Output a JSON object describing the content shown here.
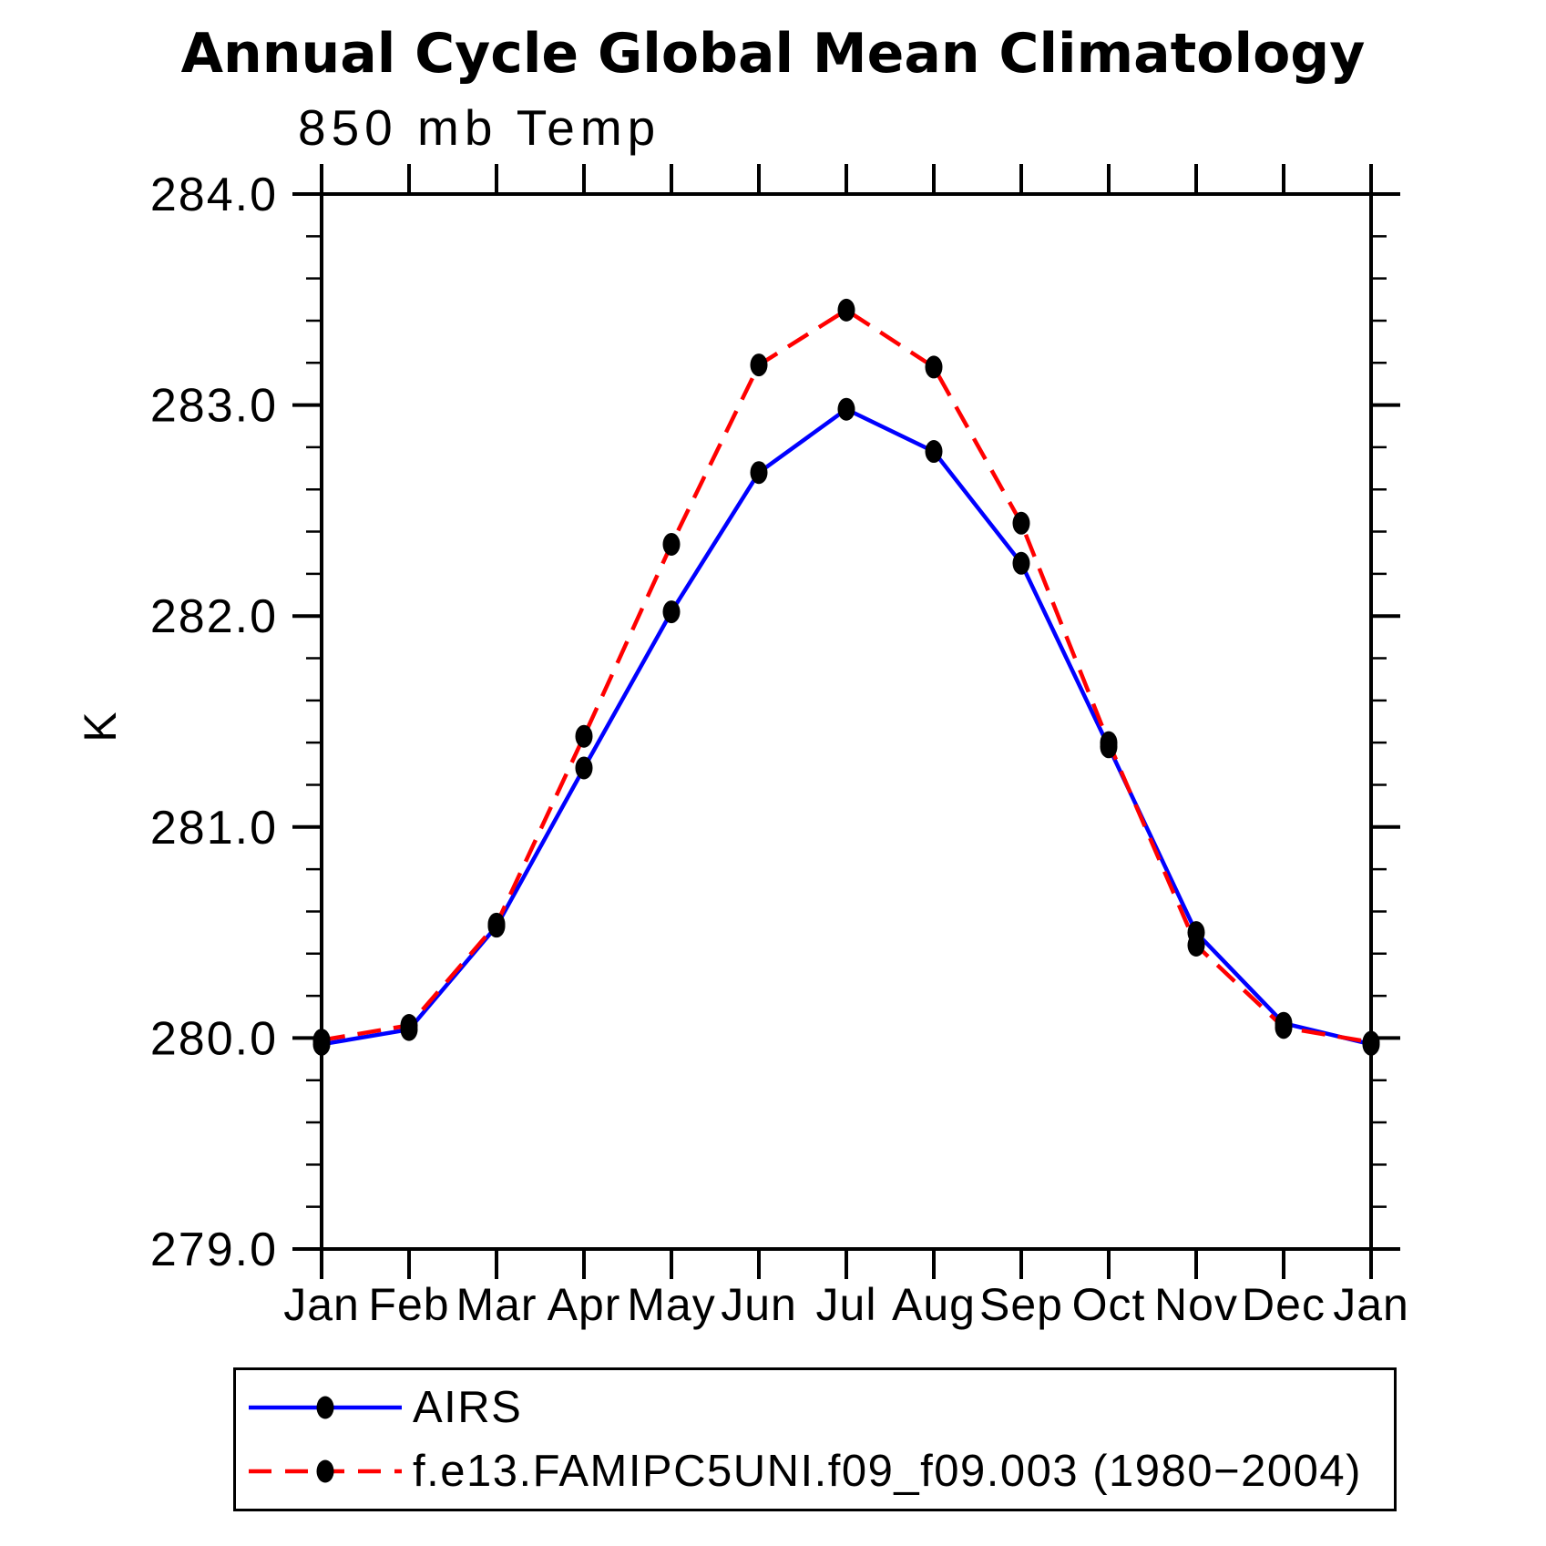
{
  "chart": {
    "title": "Annual Cycle Global Mean Climatology",
    "subtitle": "850 mb Temp",
    "ylabel": "K"
  },
  "chart_data": {
    "type": "line",
    "title": "Annual Cycle Global Mean Climatology",
    "subtitle": "850 mb Temp",
    "xlabel": "",
    "ylabel": "K",
    "categories": [
      "Jan",
      "Feb",
      "Mar",
      "Apr",
      "May",
      "Jun",
      "Jul",
      "Aug",
      "Sep",
      "Oct",
      "Nov",
      "Dec",
      "Jan"
    ],
    "ylim": [
      279.0,
      284.0
    ],
    "ytick_labels": [
      "279.0",
      "280.0",
      "281.0",
      "282.0",
      "283.0",
      "284.0"
    ],
    "ytick_values": [
      279.0,
      280.0,
      281.0,
      282.0,
      283.0,
      284.0
    ],
    "y_minor_tick_interval": 0.2,
    "grid": false,
    "legend_position": "bottom-left-box",
    "axis_color": "#000000",
    "marker_color": "#000000",
    "series": [
      {
        "name": "AIRS",
        "color": "#0000ff",
        "style": "solid",
        "marker": "filled-circle",
        "values": [
          279.97,
          280.04,
          280.53,
          281.28,
          282.02,
          282.68,
          282.98,
          282.78,
          282.25,
          281.38,
          280.5,
          280.07,
          279.97
        ]
      },
      {
        "name": "f.e13.FAMIPC5UNI.f09_f09.003 (1980−2004)",
        "color": "#ff0000",
        "style": "dashed",
        "marker": "filled-circle",
        "values": [
          279.99,
          280.06,
          280.54,
          281.43,
          282.34,
          283.19,
          283.45,
          283.18,
          282.44,
          281.4,
          280.44,
          280.05,
          279.98
        ]
      }
    ]
  }
}
